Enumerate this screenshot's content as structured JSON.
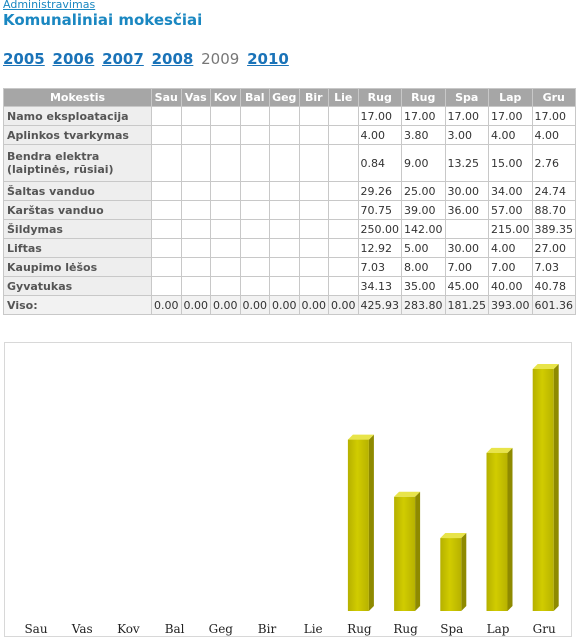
{
  "header": {
    "admin_link": "Administravimas",
    "title": "Komunaliniai mokesčiai"
  },
  "years": [
    {
      "label": "2005",
      "current": false
    },
    {
      "label": "2006",
      "current": false
    },
    {
      "label": "2007",
      "current": false
    },
    {
      "label": "2008",
      "current": false
    },
    {
      "label": "2009",
      "current": true
    },
    {
      "label": "2010",
      "current": false
    }
  ],
  "table": {
    "header": "Mokestis",
    "months": [
      "Sau",
      "Vas",
      "Kov",
      "Bal",
      "Geg",
      "Bir",
      "Lie",
      "Rug",
      "Rug",
      "Spa",
      "Lap",
      "Gru"
    ],
    "rows": [
      {
        "label": "Namo eksploatacija",
        "values": [
          "",
          "",
          "",
          "",
          "",
          "",
          "",
          "17.00",
          "17.00",
          "17.00",
          "17.00",
          "17.00"
        ]
      },
      {
        "label": "Aplinkos tvarkymas",
        "values": [
          "",
          "",
          "",
          "",
          "",
          "",
          "",
          "4.00",
          "3.80",
          "3.00",
          "4.00",
          "4.00"
        ]
      },
      {
        "label": "Bendra elektra (laiptinės, rūsiai)",
        "values": [
          "",
          "",
          "",
          "",
          "",
          "",
          "",
          "0.84",
          "9.00",
          "13.25",
          "15.00",
          "2.76"
        ],
        "tall": true
      },
      {
        "label": "Šaltas vanduo",
        "values": [
          "",
          "",
          "",
          "",
          "",
          "",
          "",
          "29.26",
          "25.00",
          "30.00",
          "34.00",
          "24.74"
        ]
      },
      {
        "label": "Karštas vanduo",
        "values": [
          "",
          "",
          "",
          "",
          "",
          "",
          "",
          "70.75",
          "39.00",
          "36.00",
          "57.00",
          "88.70"
        ]
      },
      {
        "label": "Šildymas",
        "values": [
          "",
          "",
          "",
          "",
          "",
          "",
          "",
          "250.00",
          "142.00",
          "",
          "215.00",
          "389.35"
        ]
      },
      {
        "label": "Liftas",
        "values": [
          "",
          "",
          "",
          "",
          "",
          "",
          "",
          "12.92",
          "5.00",
          "30.00",
          "4.00",
          "27.00"
        ]
      },
      {
        "label": "Kaupimo lėšos",
        "values": [
          "",
          "",
          "",
          "",
          "",
          "",
          "",
          "7.03",
          "8.00",
          "7.00",
          "7.00",
          "7.03"
        ]
      },
      {
        "label": "Gyvatukas",
        "values": [
          "",
          "",
          "",
          "",
          "",
          "",
          "",
          "34.13",
          "35.00",
          "45.00",
          "40.00",
          "40.78"
        ]
      }
    ],
    "total": {
      "label": "Viso:",
      "values": [
        "0.00",
        "0.00",
        "0.00",
        "0.00",
        "0.00",
        "0.00",
        "0.00",
        "425.93",
        "283.80",
        "181.25",
        "393.00",
        "601.36"
      ]
    }
  },
  "chart_data": {
    "type": "bar",
    "categories": [
      "Sau",
      "Vas",
      "Kov",
      "Bal",
      "Geg",
      "Bir",
      "Lie",
      "Rug",
      "Rug",
      "Spa",
      "Lap",
      "Gru"
    ],
    "values": [
      0,
      0,
      0,
      0,
      0,
      0,
      0,
      425.93,
      283.8,
      181.25,
      393.0,
      601.36
    ],
    "bar_color": "#d1cc00",
    "title": "",
    "xlabel": "",
    "ylabel": ""
  }
}
